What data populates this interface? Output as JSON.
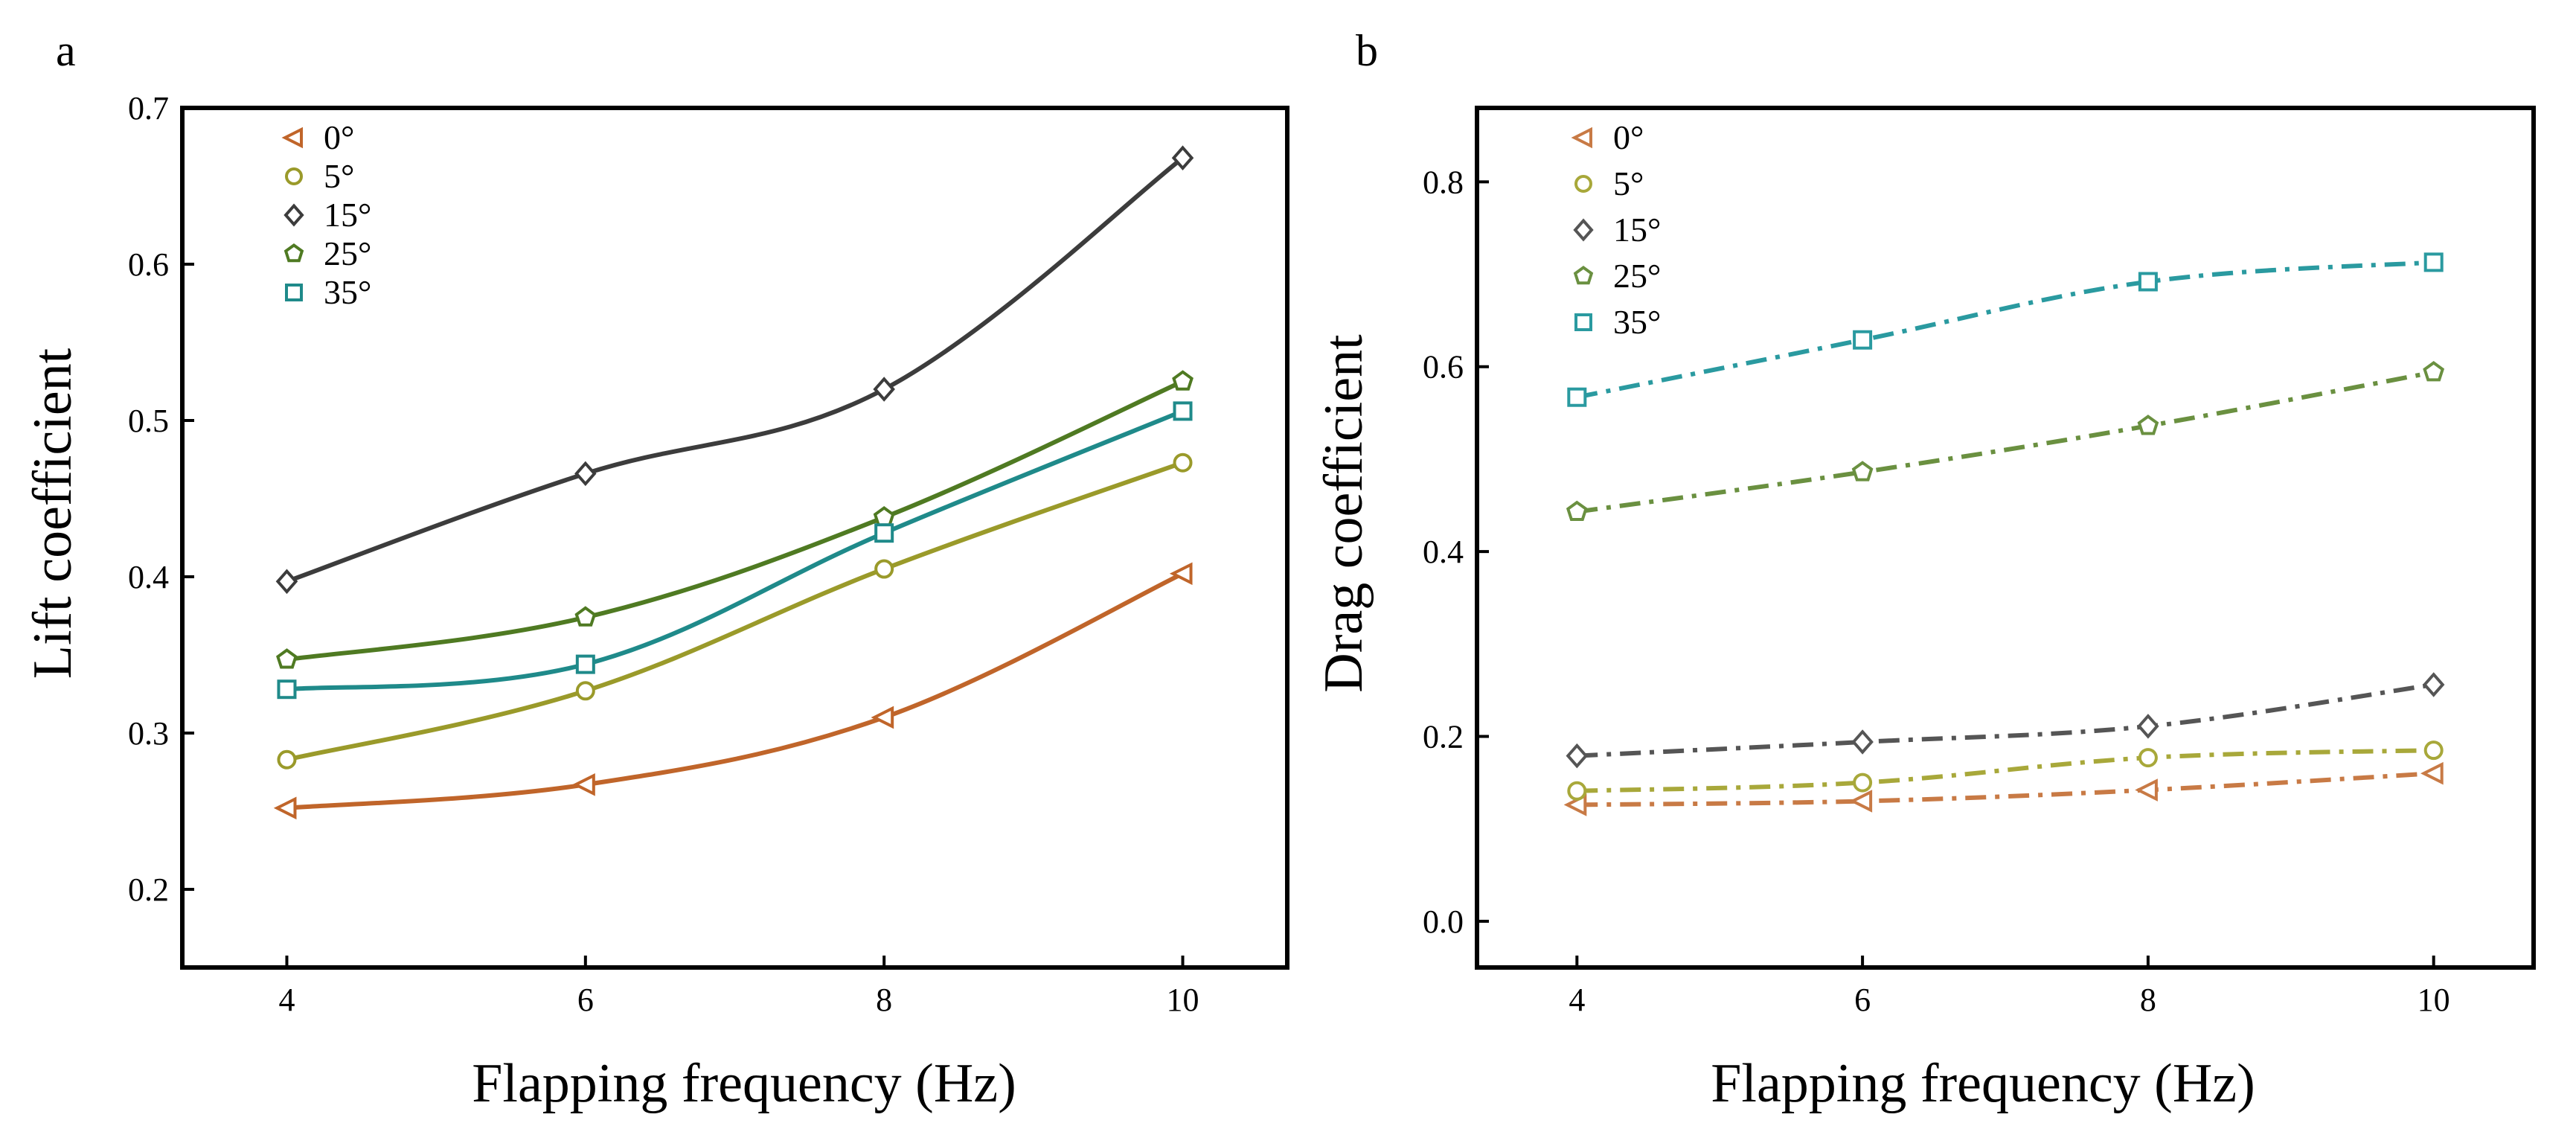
{
  "figure": {
    "panel_labels": [
      "a",
      "b"
    ]
  },
  "chart_data": [
    {
      "id": "a",
      "type": "line",
      "title": "",
      "xlabel": "Flapping frequency (Hz)",
      "ylabel": "Lift coefficient",
      "x": [
        4,
        6,
        8,
        10
      ],
      "xlim": [
        3.3,
        10.7
      ],
      "ylim": [
        0.15,
        0.7
      ],
      "xticks": [
        4,
        6,
        8,
        10
      ],
      "xtick_labels": [
        "4",
        "6",
        "8",
        "10"
      ],
      "yticks": [
        0.2,
        0.3,
        0.4,
        0.5,
        0.6,
        0.7
      ],
      "ytick_labels": [
        "0.2",
        "0.3",
        "0.4",
        "0.5",
        "0.6",
        "0.7"
      ],
      "grid": false,
      "legend_position": "top-left",
      "line_style": "solid",
      "series": [
        {
          "name": "0°",
          "marker": "triangle-left",
          "color": "#c0652a",
          "values": [
            0.252,
            0.267,
            0.31,
            0.402
          ]
        },
        {
          "name": "5°",
          "marker": "circle",
          "color": "#9a9a2a",
          "values": [
            0.283,
            0.327,
            0.405,
            0.473
          ]
        },
        {
          "name": "15°",
          "marker": "diamond",
          "color": "#3c3c3c",
          "values": [
            0.397,
            0.466,
            0.52,
            0.668
          ]
        },
        {
          "name": "25°",
          "marker": "pentagon",
          "color": "#4f7a22",
          "values": [
            0.347,
            0.374,
            0.438,
            0.525
          ]
        },
        {
          "name": "35°",
          "marker": "square",
          "color": "#1f8a8a",
          "values": [
            0.328,
            0.344,
            0.428,
            0.506
          ]
        }
      ]
    },
    {
      "id": "b",
      "type": "line",
      "title": "",
      "xlabel": "Flapping frequency (Hz)",
      "ylabel": "Drag coefficient",
      "x": [
        4,
        6,
        8,
        10
      ],
      "xlim": [
        3.3,
        10.7
      ],
      "ylim": [
        -0.05,
        0.88
      ],
      "xticks": [
        4,
        6,
        8,
        10
      ],
      "xtick_labels": [
        "4",
        "6",
        "8",
        "10"
      ],
      "yticks": [
        0.0,
        0.2,
        0.4,
        0.6,
        0.8
      ],
      "ytick_labels": [
        "0.0",
        "0.2",
        "0.4",
        "0.6",
        "0.8"
      ],
      "grid": false,
      "legend_position": "top-left",
      "line_style": "dash-dot",
      "series": [
        {
          "name": "0°",
          "marker": "triangle-left",
          "color": "#c87a45",
          "values": [
            0.126,
            0.13,
            0.142,
            0.16
          ]
        },
        {
          "name": "5°",
          "marker": "circle",
          "color": "#a8a83a",
          "values": [
            0.141,
            0.15,
            0.177,
            0.185
          ]
        },
        {
          "name": "15°",
          "marker": "diamond",
          "color": "#555555",
          "values": [
            0.179,
            0.194,
            0.211,
            0.256
          ]
        },
        {
          "name": "25°",
          "marker": "pentagon",
          "color": "#6a9040",
          "values": [
            0.443,
            0.486,
            0.536,
            0.594
          ]
        },
        {
          "name": "35°",
          "marker": "square",
          "color": "#2a9aa0",
          "values": [
            0.567,
            0.629,
            0.692,
            0.713
          ]
        }
      ]
    }
  ]
}
